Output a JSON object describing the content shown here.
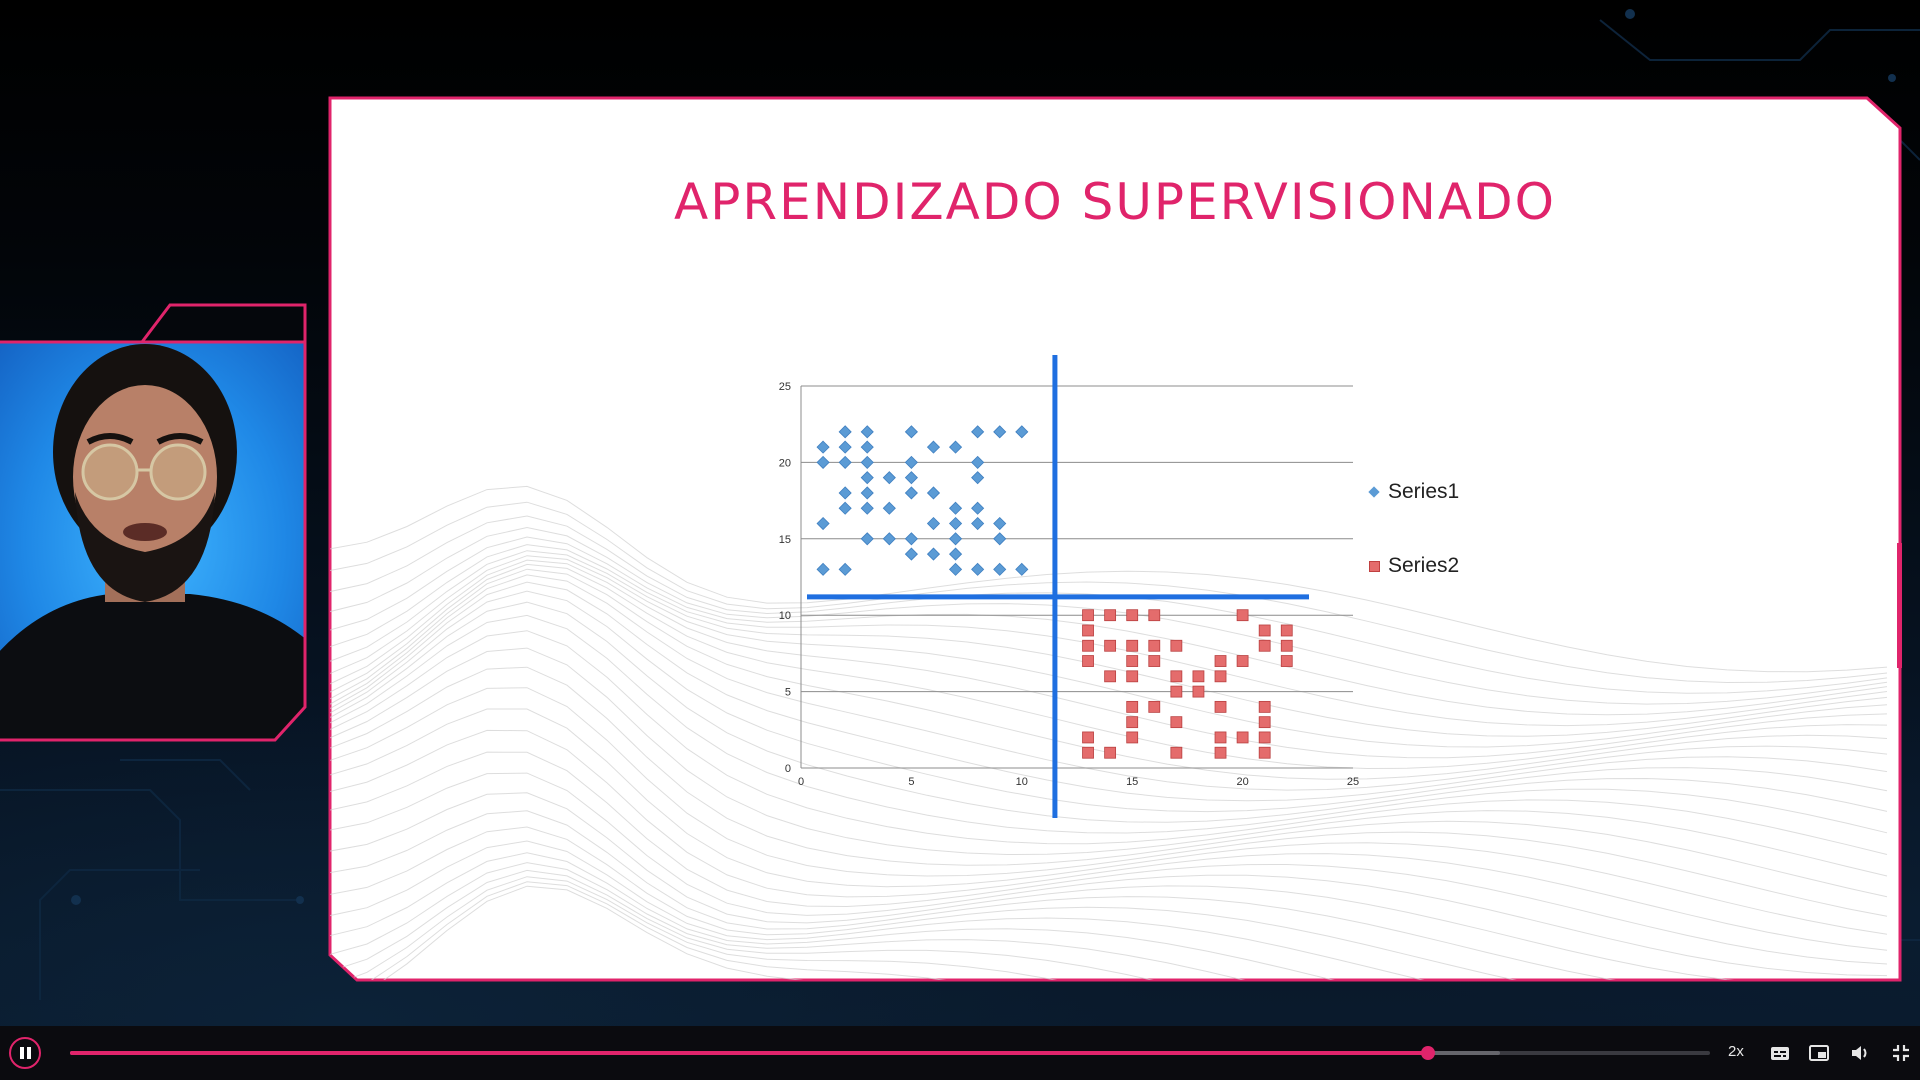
{
  "slide": {
    "title": "APRENDIZADO SUPERVISIONADO"
  },
  "chart_data": {
    "type": "scatter",
    "title": "",
    "xlabel": "",
    "ylabel": "",
    "xlim": [
      0,
      25
    ],
    "ylim": [
      0,
      25
    ],
    "x_ticks": [
      "0",
      "5",
      "10",
      "15",
      "20",
      "25"
    ],
    "y_ticks": [
      "0",
      "5",
      "10",
      "15",
      "20",
      "25"
    ],
    "grid": "horizontal",
    "legend_position": "right",
    "series": [
      {
        "name": "Series1",
        "marker": "diamond",
        "color": "#5b9bd5",
        "points": [
          [
            1,
            21
          ],
          [
            1,
            20
          ],
          [
            1,
            16
          ],
          [
            1,
            13
          ],
          [
            2,
            22
          ],
          [
            2,
            21
          ],
          [
            2,
            20
          ],
          [
            2,
            18
          ],
          [
            2,
            17
          ],
          [
            2,
            13
          ],
          [
            3,
            22
          ],
          [
            3,
            21
          ],
          [
            3,
            20
          ],
          [
            3,
            19
          ],
          [
            3,
            18
          ],
          [
            3,
            17
          ],
          [
            3,
            15
          ],
          [
            4,
            19
          ],
          [
            4,
            17
          ],
          [
            4,
            15
          ],
          [
            5,
            22
          ],
          [
            5,
            20
          ],
          [
            5,
            19
          ],
          [
            5,
            18
          ],
          [
            5,
            15
          ],
          [
            5,
            14
          ],
          [
            6,
            21
          ],
          [
            6,
            18
          ],
          [
            6,
            16
          ],
          [
            6,
            14
          ],
          [
            7,
            21
          ],
          [
            7,
            17
          ],
          [
            7,
            16
          ],
          [
            7,
            15
          ],
          [
            7,
            14
          ],
          [
            7,
            13
          ],
          [
            8,
            22
          ],
          [
            8,
            20
          ],
          [
            8,
            19
          ],
          [
            8,
            17
          ],
          [
            8,
            16
          ],
          [
            8,
            13
          ],
          [
            9,
            22
          ],
          [
            9,
            16
          ],
          [
            9,
            15
          ],
          [
            9,
            13
          ],
          [
            10,
            22
          ],
          [
            10,
            13
          ]
        ]
      },
      {
        "name": "Series2",
        "marker": "square",
        "color": "#e46c6c",
        "points": [
          [
            13,
            10
          ],
          [
            13,
            9
          ],
          [
            13,
            8
          ],
          [
            13,
            7
          ],
          [
            13,
            2
          ],
          [
            13,
            1
          ],
          [
            14,
            10
          ],
          [
            14,
            8
          ],
          [
            14,
            6
          ],
          [
            14,
            1
          ],
          [
            15,
            10
          ],
          [
            15,
            8
          ],
          [
            15,
            7
          ],
          [
            15,
            6
          ],
          [
            15,
            4
          ],
          [
            15,
            3
          ],
          [
            15,
            2
          ],
          [
            16,
            10
          ],
          [
            16,
            8
          ],
          [
            16,
            7
          ],
          [
            16,
            4
          ],
          [
            17,
            8
          ],
          [
            17,
            6
          ],
          [
            17,
            5
          ],
          [
            17,
            3
          ],
          [
            17,
            1
          ],
          [
            18,
            6
          ],
          [
            18,
            5
          ],
          [
            19,
            7
          ],
          [
            19,
            6
          ],
          [
            19,
            4
          ],
          [
            19,
            2
          ],
          [
            19,
            1
          ],
          [
            20,
            10
          ],
          [
            20,
            7
          ],
          [
            20,
            2
          ],
          [
            21,
            9
          ],
          [
            21,
            8
          ],
          [
            21,
            4
          ],
          [
            21,
            3
          ],
          [
            21,
            2
          ],
          [
            21,
            1
          ],
          [
            22,
            9
          ],
          [
            22,
            8
          ],
          [
            22,
            7
          ]
        ]
      }
    ],
    "annotations": {
      "vertical_divider_x": 11.5,
      "horizontal_divider_y": 11.2,
      "divider_color": "#1f6fe0"
    }
  },
  "player": {
    "speed_label": "2x",
    "progress_fraction": 0.828,
    "buffered_fraction": 0.872,
    "accent_color": "#e0246b",
    "icons": [
      "pause-icon",
      "captions-icon",
      "picture-in-picture-icon",
      "volume-icon",
      "exit-fullscreen-icon"
    ]
  }
}
